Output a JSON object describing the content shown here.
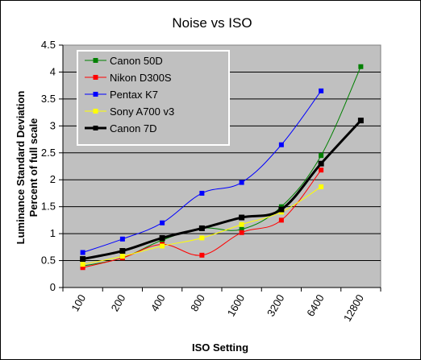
{
  "chart_data": {
    "type": "line",
    "title": "Noise vs ISO",
    "xlabel": "ISO Setting",
    "ylabel": [
      "Luminance Standard Deviation",
      "Percent of full scale"
    ],
    "categories": [
      "100",
      "200",
      "400",
      "800",
      "1600",
      "3200",
      "6400",
      "12800"
    ],
    "ylim": [
      0,
      4.5
    ],
    "yticks": [
      "0",
      "0.5",
      "1",
      "1.5",
      "2",
      "2.5",
      "3",
      "3.5",
      "4",
      "4.5"
    ],
    "grid": true,
    "legend_position": "top-left",
    "plot_background": "#c0c0c0",
    "series": [
      {
        "name": "Canon 50D",
        "color": "#008000",
        "values": [
          0.4,
          0.55,
          0.88,
          1.1,
          1.08,
          1.5,
          2.45,
          4.1
        ]
      },
      {
        "name": "Nikon D300S",
        "color": "#ff0000",
        "values": [
          0.37,
          0.55,
          0.8,
          0.6,
          1.02,
          1.25,
          2.18,
          null
        ]
      },
      {
        "name": "Pentax K7",
        "color": "#0000ff",
        "values": [
          0.65,
          0.9,
          1.2,
          1.75,
          1.95,
          2.65,
          3.65,
          null
        ]
      },
      {
        "name": "Sony A700 v3",
        "color": "#ffff00",
        "values": [
          0.43,
          0.58,
          0.77,
          0.92,
          1.17,
          1.4,
          1.87,
          null
        ]
      },
      {
        "name": "Canon 7D",
        "color": "#000000",
        "values": [
          0.53,
          0.68,
          0.92,
          1.1,
          1.3,
          1.45,
          2.3,
          3.1
        ]
      }
    ]
  }
}
